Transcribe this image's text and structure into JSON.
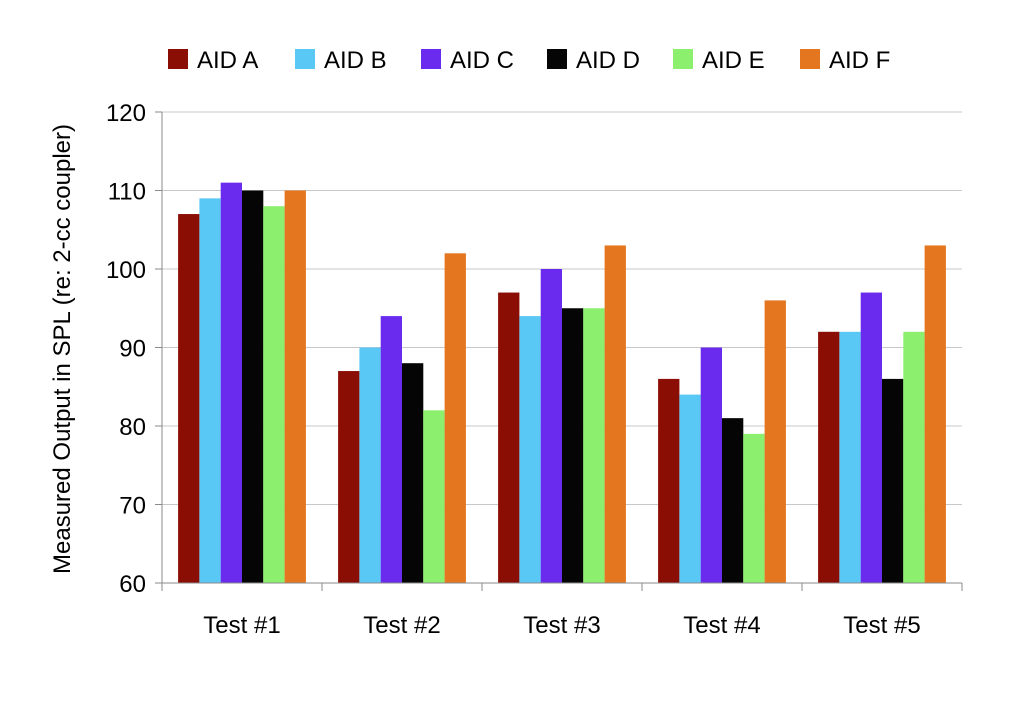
{
  "chart_data": {
    "type": "bar",
    "title": "",
    "xlabel": "",
    "ylabel": "Measured Output in SPL (re: 2-cc coupler)",
    "ylim": [
      60,
      120
    ],
    "yticks": [
      60,
      70,
      80,
      90,
      100,
      110,
      120
    ],
    "grid": "horizontal",
    "legend_position": "top",
    "categories": [
      "Test #1",
      "Test #2",
      "Test #3",
      "Test #4",
      "Test #5"
    ],
    "series": [
      {
        "name": "AID A",
        "color": "#8B0E04",
        "values": [
          107,
          87,
          97,
          86,
          92
        ]
      },
      {
        "name": "AID B",
        "color": "#5AC8F5",
        "values": [
          109,
          90,
          94,
          84,
          92
        ]
      },
      {
        "name": "AID C",
        "color": "#6A2BEF",
        "values": [
          111,
          94,
          100,
          90,
          97
        ]
      },
      {
        "name": "AID D",
        "color": "#050505",
        "values": [
          110,
          88,
          95,
          81,
          86
        ]
      },
      {
        "name": "AID E",
        "color": "#8CF06E",
        "values": [
          108,
          82,
          95,
          79,
          92
        ]
      },
      {
        "name": "AID F",
        "color": "#E3761E",
        "values": [
          110,
          102,
          103,
          96,
          103
        ]
      }
    ]
  }
}
